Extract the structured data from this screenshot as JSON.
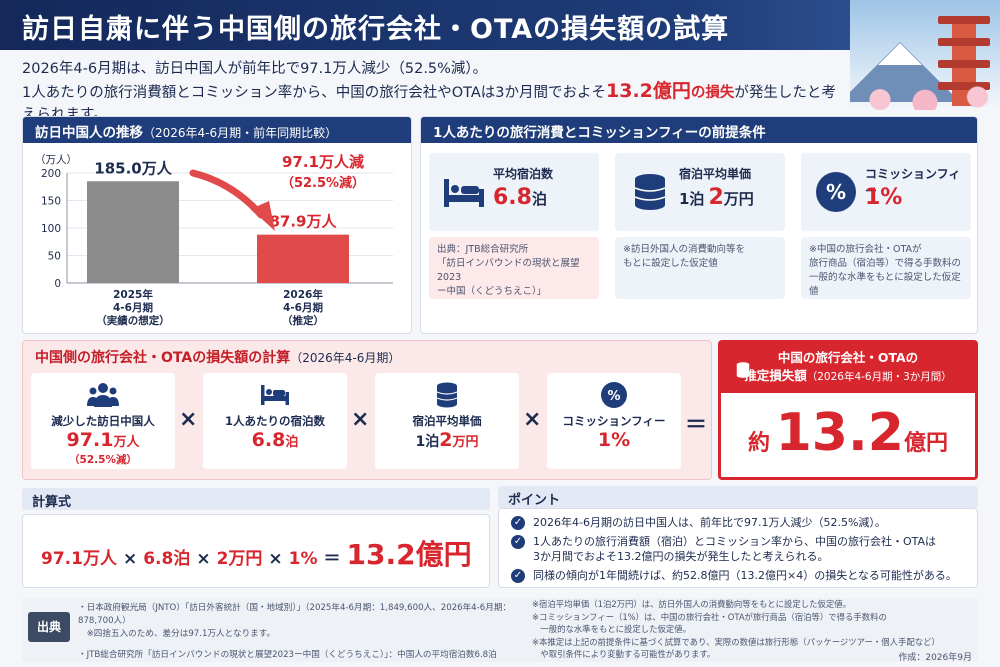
{
  "title": "訪日自粛に伴う中国側の旅行会社・OTAの損失額の試算",
  "lead": {
    "line1": "2026年4-6月期は、訪日中国人が前年比で97.1万人減少（52.5%減）。",
    "line2a": "1人あたりの旅行消費額とコミッション率から、中国の旅行会社やOTAは3か月間でおよそ",
    "line2_hl": "13.2億円",
    "line2_hl2": "の損失",
    "line2b": "が発生したと考えられます。"
  },
  "trend": {
    "head": "訪日中国人の推移",
    "head_sub": "（2026年4-6月期・前年同期比較）",
    "unit_label": "（万人）"
  },
  "chart_data": {
    "type": "bar",
    "categories": [
      "2025年\n4-6月期\n（実績の想定）",
      "2026年\n4-6月期\n（推定）"
    ],
    "category_lines": [
      [
        "2025年",
        "4-6月期",
        "（実績の想定）"
      ],
      [
        "2026年",
        "4-6月期",
        "（推定）"
      ]
    ],
    "values": [
      185.0,
      87.9
    ],
    "value_labels": [
      "185.0万人",
      "87.9万人"
    ],
    "bar_colors": [
      "#8c8c8c",
      "#e04a4a"
    ],
    "yticks": [
      0,
      50,
      100,
      150,
      200
    ],
    "ylim": [
      0,
      200
    ],
    "ylabel": "（万人）",
    "annotation": [
      "97.1万人減",
      "（52.5%減）"
    ],
    "grid": true
  },
  "assumptions": {
    "head": "1人あたりの旅行消費とコミッションフィーの前提条件",
    "items": [
      {
        "label": "平均宿泊数",
        "value": "6.8",
        "unit": "泊",
        "prefix": "",
        "icon": "bed-icon",
        "note": [
          "出典：JTB総合研究所",
          "「訪日インバウンドの現状と展望2023",
          "ー中国（くどうちえこ）」"
        ]
      },
      {
        "label": "宿泊平均単価",
        "value": "2",
        "unit": "万円",
        "prefix": "1泊",
        "icon": "coins-icon",
        "note": [
          "※訪日外国人の消費動向等を",
          "もとに設定した仮定値"
        ]
      },
      {
        "label": "コミッションフィー",
        "value": "1%",
        "unit": "",
        "prefix": "",
        "icon": "percent-icon",
        "note": [
          "※中国の旅行会社・OTAが",
          "旅行商品（宿泊等）で得る手数料の",
          "一般的な水準をもとに設定した仮定値"
        ]
      }
    ]
  },
  "calc": {
    "head": "中国側の旅行会社・OTAの損失額の計算",
    "head_sub": "（2026年4-6月期）",
    "boxes": [
      {
        "label": "減少した訪日中国人",
        "value": "97.1",
        "unit": "万人",
        "sub": "（52.5%減）",
        "icon": "people-icon"
      },
      {
        "label": "1人あたりの宿泊数",
        "value": "6.8",
        "unit": "泊",
        "sub": "",
        "icon": "bed-icon"
      },
      {
        "label": "宿泊平均単価",
        "value": "2",
        "unit": "万円",
        "prefix": "1泊",
        "sub": "",
        "icon": "coins-icon"
      },
      {
        "label": "コミッションフィー",
        "value": "1%",
        "unit": "",
        "sub": "",
        "icon": "percent-icon"
      }
    ],
    "times": "×",
    "equals": "＝",
    "result_head": "中国の旅行会社・OTAの",
    "result_head2": "推定損失額",
    "result_head_sub": "（2026年4-6月期・3か月間）",
    "result_pre": "約",
    "result_value": "13.2",
    "result_unit": "億円"
  },
  "formula": {
    "head": "計算式",
    "t1": "97.1万人",
    "t2": "6.8泊",
    "t3": "2万円",
    "t4": "1%",
    "times": "×",
    "eq": "＝",
    "result": "13.2億円"
  },
  "points": {
    "head": "ポイント",
    "items": [
      [
        "2026年4-6月期の訪日中国人は、前年比で97.1万人減少（52.5%減）。"
      ],
      [
        "1人あたりの旅行消費額（宿泊）とコミッション率から、中国の旅行会社・OTAは",
        "3か月間でおよそ13.2億円の損失が発生したと考えられる。"
      ],
      [
        "同様の傾向が1年間続けば、約52.8億円（13.2億円×4）の損失となる可能性がある。"
      ]
    ]
  },
  "sources": {
    "badge": "出典",
    "left": [
      "・日本政府観光局（JNTO）「訪日外客統計（国・地域別）」（2025年4-6月期：1,849,600人、2026年4-6月期：878,700人）",
      "　※四捨五入のため、差分は97.1万人となります。",
      "・JTB総合研究所「訪日インバウンドの現状と展望2023ー中国（くどうちえこ）」：中国人の平均宿泊数6.8泊"
    ],
    "right": [
      "※宿泊平均単価（1泊2万円）は、訪日外国人の消費動向等をもとに設定した仮定値。",
      "※コミッションフィー（1%）は、中国の旅行会社・OTAが旅行商品（宿泊等）で得る手数料の",
      "　一般的な水準をもとに設定した仮定値。",
      "※本推定は上記の前提条件に基づく試算であり、実際の数値は旅行形態（パッケージツアー・個人手配など）",
      "　や取引条件により変動する可能性があります。"
    ],
    "made": "作成：2026年9月"
  }
}
